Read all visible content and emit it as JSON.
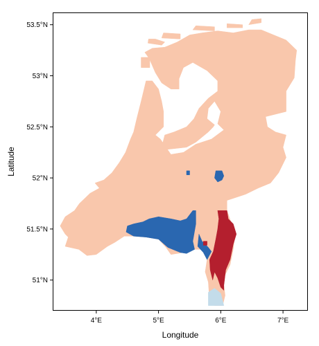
{
  "chart_data": {
    "type": "heatmap",
    "title": "",
    "xlabel": "Longitude",
    "ylabel": "Latitude",
    "xlim": [
      3.3,
      7.4
    ],
    "ylim": [
      50.7,
      53.62
    ],
    "x_ticks": [
      {
        "value": 4,
        "label": "4°E"
      },
      {
        "value": 5,
        "label": "5°E"
      },
      {
        "value": 6,
        "label": "6°E"
      },
      {
        "value": 7,
        "label": "7°E"
      }
    ],
    "y_ticks": [
      {
        "value": 51,
        "label": "51°N"
      },
      {
        "value": 51.5,
        "label": "51.5°N"
      },
      {
        "value": 52,
        "label": "52°N"
      },
      {
        "value": 52.5,
        "label": "52.5°N"
      },
      {
        "value": 53,
        "label": "53°N"
      },
      {
        "value": 53.5,
        "label": "53.5°N"
      }
    ],
    "grid": false,
    "legend": "none",
    "category_colors": {
      "peach": "#f9c7ac",
      "dark_blue": "#2a67b0",
      "dark_red": "#b41f2e",
      "light_blue": "#c3dcea"
    },
    "regions": [
      {
        "class": "peach",
        "polygon": [
          [
            4.78,
            53.23
          ],
          [
            4.85,
            53.17
          ],
          [
            4.95,
            53.03
          ],
          [
            5.05,
            52.93
          ],
          [
            5.2,
            52.87
          ],
          [
            5.33,
            52.87
          ],
          [
            5.33,
            52.97
          ],
          [
            5.4,
            53.08
          ],
          [
            5.55,
            53.13
          ],
          [
            5.78,
            53.05
          ],
          [
            5.95,
            52.95
          ],
          [
            5.95,
            52.85
          ],
          [
            5.8,
            52.78
          ],
          [
            5.65,
            52.68
          ],
          [
            5.57,
            52.58
          ],
          [
            5.45,
            52.5
          ],
          [
            5.25,
            52.45
          ],
          [
            5.1,
            52.42
          ],
          [
            5.05,
            52.3
          ],
          [
            5.15,
            52.28
          ],
          [
            5.45,
            52.3
          ],
          [
            5.6,
            52.35
          ],
          [
            5.8,
            52.45
          ],
          [
            5.88,
            52.5
          ],
          [
            5.9,
            52.52
          ],
          [
            5.78,
            52.58
          ],
          [
            5.8,
            52.68
          ],
          [
            5.9,
            52.75
          ],
          [
            6.0,
            52.65
          ],
          [
            5.95,
            52.53
          ],
          [
            6.05,
            52.47
          ],
          [
            5.85,
            52.38
          ],
          [
            5.6,
            52.33
          ],
          [
            5.4,
            52.25
          ],
          [
            5.2,
            52.23
          ],
          [
            5.03,
            52.38
          ],
          [
            4.95,
            52.42
          ],
          [
            5.08,
            52.5
          ],
          [
            5.08,
            52.65
          ],
          [
            5.05,
            52.75
          ],
          [
            5.0,
            52.87
          ],
          [
            4.9,
            52.95
          ],
          [
            4.8,
            52.95
          ],
          [
            4.72,
            52.75
          ],
          [
            4.65,
            52.58
          ],
          [
            4.6,
            52.45
          ],
          [
            4.55,
            52.38
          ],
          [
            4.47,
            52.25
          ],
          [
            4.37,
            52.15
          ],
          [
            4.25,
            52.05
          ],
          [
            4.12,
            51.98
          ],
          [
            3.98,
            51.95
          ],
          [
            4.05,
            51.9
          ],
          [
            3.9,
            51.85
          ],
          [
            3.73,
            51.75
          ],
          [
            3.65,
            51.68
          ],
          [
            3.5,
            51.62
          ],
          [
            3.42,
            51.53
          ],
          [
            3.5,
            51.45
          ],
          [
            3.55,
            51.42
          ],
          [
            3.5,
            51.33
          ],
          [
            3.72,
            51.3
          ],
          [
            3.85,
            51.24
          ],
          [
            4.0,
            51.25
          ],
          [
            4.18,
            51.33
          ],
          [
            4.3,
            51.37
          ],
          [
            4.45,
            51.43
          ],
          [
            4.6,
            51.43
          ],
          [
            4.8,
            51.42
          ],
          [
            5.0,
            51.4
          ],
          [
            5.12,
            51.32
          ],
          [
            5.2,
            51.25
          ],
          [
            5.4,
            51.27
          ],
          [
            5.55,
            51.3
          ],
          [
            5.75,
            51.3
          ],
          [
            5.78,
            51.2
          ],
          [
            5.75,
            51.08
          ],
          [
            5.8,
            50.98
          ],
          [
            5.82,
            50.8
          ],
          [
            5.9,
            50.75
          ],
          [
            6.03,
            50.75
          ],
          [
            6.07,
            50.85
          ],
          [
            6.05,
            50.95
          ],
          [
            6.07,
            51.05
          ],
          [
            6.15,
            51.15
          ],
          [
            6.2,
            51.3
          ],
          [
            6.23,
            51.45
          ],
          [
            6.1,
            51.68
          ],
          [
            6.1,
            51.78
          ],
          [
            6.4,
            51.84
          ],
          [
            6.6,
            51.9
          ],
          [
            6.8,
            51.95
          ],
          [
            6.93,
            52.05
          ],
          [
            7.05,
            52.2
          ],
          [
            7.0,
            52.3
          ],
          [
            7.05,
            52.42
          ],
          [
            6.88,
            52.45
          ],
          [
            6.75,
            52.5
          ],
          [
            6.72,
            52.6
          ],
          [
            7.05,
            52.65
          ],
          [
            7.05,
            52.85
          ],
          [
            7.18,
            52.98
          ],
          [
            7.2,
            53.15
          ],
          [
            7.22,
            53.25
          ],
          [
            7.05,
            53.35
          ],
          [
            6.85,
            53.4
          ],
          [
            6.65,
            53.45
          ],
          [
            6.45,
            53.45
          ],
          [
            6.2,
            53.42
          ],
          [
            5.95,
            53.44
          ],
          [
            5.7,
            53.42
          ],
          [
            5.5,
            53.4
          ],
          [
            5.3,
            53.33
          ],
          [
            5.1,
            53.28
          ],
          [
            4.9,
            53.27
          ]
        ]
      },
      {
        "class": "peach",
        "polygon": [
          [
            4.72,
            53.18
          ],
          [
            4.86,
            53.18
          ],
          [
            4.86,
            53.08
          ],
          [
            4.72,
            53.08
          ]
        ]
      },
      {
        "class": "peach",
        "polygon": [
          [
            4.83,
            53.32
          ],
          [
            5.05,
            53.3
          ],
          [
            5.1,
            53.33
          ],
          [
            4.95,
            53.36
          ],
          [
            4.84,
            53.36
          ]
        ]
      },
      {
        "class": "peach",
        "polygon": [
          [
            5.05,
            53.37
          ],
          [
            5.35,
            53.36
          ],
          [
            5.35,
            53.41
          ],
          [
            5.08,
            53.42
          ]
        ]
      },
      {
        "class": "peach",
        "polygon": [
          [
            5.55,
            53.45
          ],
          [
            5.9,
            53.44
          ],
          [
            5.9,
            53.48
          ],
          [
            5.6,
            53.49
          ]
        ]
      },
      {
        "class": "peach",
        "polygon": [
          [
            6.1,
            53.47
          ],
          [
            6.35,
            53.47
          ],
          [
            6.35,
            53.5
          ],
          [
            6.1,
            53.51
          ]
        ]
      },
      {
        "class": "peach",
        "polygon": [
          [
            6.45,
            53.5
          ],
          [
            6.65,
            53.52
          ],
          [
            6.65,
            53.56
          ],
          [
            6.5,
            53.55
          ]
        ]
      },
      {
        "class": "dark_blue",
        "polygon": [
          [
            4.5,
            51.53
          ],
          [
            4.6,
            51.55
          ],
          [
            4.75,
            51.57
          ],
          [
            4.85,
            51.6
          ],
          [
            5.0,
            51.62
          ],
          [
            5.2,
            51.6
          ],
          [
            5.35,
            51.58
          ],
          [
            5.45,
            51.6
          ],
          [
            5.55,
            51.68
          ],
          [
            5.6,
            51.68
          ],
          [
            5.6,
            51.55
          ],
          [
            5.55,
            51.38
          ],
          [
            5.58,
            51.3
          ],
          [
            5.45,
            51.26
          ],
          [
            5.35,
            51.27
          ],
          [
            5.15,
            51.32
          ],
          [
            5.0,
            51.4
          ],
          [
            4.8,
            51.42
          ],
          [
            4.6,
            51.43
          ],
          [
            4.48,
            51.47
          ]
        ]
      },
      {
        "class": "dark_blue",
        "polygon": [
          [
            5.65,
            51.45
          ],
          [
            5.7,
            51.38
          ],
          [
            5.8,
            51.32
          ],
          [
            5.85,
            51.28
          ],
          [
            5.78,
            51.2
          ],
          [
            5.72,
            51.27
          ],
          [
            5.63,
            51.33
          ]
        ]
      },
      {
        "class": "dark_blue",
        "polygon": [
          [
            5.92,
            52.07
          ],
          [
            6.02,
            52.07
          ],
          [
            6.05,
            52.02
          ],
          [
            6.02,
            51.98
          ],
          [
            5.95,
            51.96
          ],
          [
            5.9,
            52.0
          ]
        ]
      },
      {
        "class": "dark_blue",
        "polygon": [
          [
            5.45,
            52.07
          ],
          [
            5.5,
            52.07
          ],
          [
            5.5,
            52.03
          ],
          [
            5.45,
            52.03
          ]
        ]
      },
      {
        "class": "dark_red",
        "polygon": [
          [
            5.95,
            51.68
          ],
          [
            6.1,
            51.68
          ],
          [
            6.12,
            51.6
          ],
          [
            6.2,
            51.55
          ],
          [
            6.25,
            51.45
          ],
          [
            6.2,
            51.35
          ],
          [
            6.15,
            51.2
          ],
          [
            6.08,
            51.1
          ],
          [
            6.07,
            51.05
          ],
          [
            6.05,
            50.95
          ],
          [
            6.05,
            50.9
          ],
          [
            6.0,
            50.93
          ],
          [
            5.95,
            51.02
          ],
          [
            5.9,
            51.08
          ],
          [
            5.87,
            51.0
          ],
          [
            5.83,
            51.1
          ],
          [
            5.82,
            51.2
          ],
          [
            5.88,
            51.28
          ],
          [
            5.92,
            51.4
          ],
          [
            5.95,
            51.5
          ],
          [
            5.97,
            51.6
          ]
        ]
      },
      {
        "class": "dark_red",
        "polygon": [
          [
            5.72,
            51.38
          ],
          [
            5.78,
            51.38
          ],
          [
            5.78,
            51.34
          ],
          [
            5.72,
            51.34
          ]
        ]
      },
      {
        "class": "light_blue",
        "polygon": [
          [
            5.8,
            50.88
          ],
          [
            5.9,
            50.92
          ],
          [
            6.0,
            50.87
          ],
          [
            6.05,
            50.75
          ],
          [
            5.8,
            50.75
          ]
        ]
      }
    ]
  }
}
